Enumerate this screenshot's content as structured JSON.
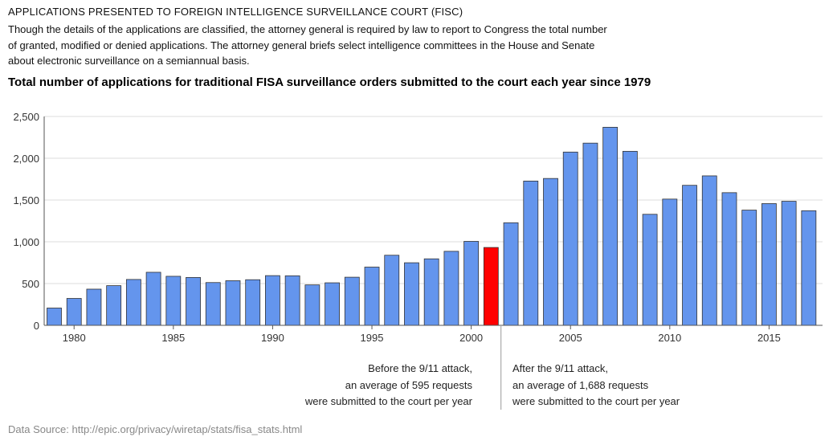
{
  "header": {
    "title": "APPLICATIONS PRESENTED TO FOREIGN INTELLIGENCE SURVEILLANCE COURT (FISC)",
    "description_lines": [
      "Though the details of the applications are classified, the attorney general is required by law to report to Congress the total number",
      "of granted, modified or denied applications. The attorney general briefs select intelligence committees in the House and Senate",
      "about electronic surveillance on a semiannual basis."
    ]
  },
  "chart_data": {
    "type": "bar",
    "title": "Total number of applications for traditional FISA surveillance orders submitted to the court each year since 1979",
    "xlabel": "",
    "ylabel": "",
    "x": [
      1979,
      1980,
      1981,
      1982,
      1983,
      1984,
      1985,
      1986,
      1987,
      1988,
      1989,
      1990,
      1991,
      1992,
      1993,
      1994,
      1995,
      1996,
      1997,
      1998,
      1999,
      2000,
      2001,
      2002,
      2003,
      2004,
      2005,
      2006,
      2007,
      2008,
      2009,
      2010,
      2011,
      2012,
      2013,
      2014,
      2015,
      2016,
      2017
    ],
    "values": [
      207,
      322,
      433,
      475,
      549,
      635,
      587,
      573,
      512,
      534,
      546,
      595,
      593,
      484,
      509,
      576,
      697,
      839,
      749,
      796,
      886,
      1005,
      932,
      1228,
      1727,
      1758,
      2074,
      2181,
      2371,
      2083,
      1329,
      1511,
      1676,
      1789,
      1588,
      1379,
      1457,
      1485,
      1372
    ],
    "highlight": 2001,
    "colors": {
      "bar": "#6495ED",
      "highlight": "#FF0000",
      "bar_outline": "#333333",
      "grid": "#dddddd"
    },
    "ylim": [
      0,
      2500
    ],
    "yticks": [
      0,
      500,
      1000,
      1500,
      2000,
      2500
    ],
    "ytick_labels": [
      "0",
      "500",
      "1,000",
      "1,500",
      "2,000",
      "2,500"
    ],
    "xticks": [
      1980,
      1985,
      1990,
      1995,
      2000,
      2005,
      2010,
      2015
    ],
    "xtick_labels": [
      "1980",
      "1985",
      "1990",
      "1995",
      "2000",
      "2005",
      "2010",
      "2015"
    ],
    "grid": true,
    "annotations": {
      "before": [
        "Before the 9/11 attack,",
        "an average of 595 requests",
        "were submitted to the court per year"
      ],
      "after": [
        "After the 9/11 attack,",
        "an average of 1,688 requests",
        "were submitted to the court per year"
      ]
    }
  },
  "footer": {
    "source": "Data Source: http://epic.org/privacy/wiretap/stats/fisa_stats.html"
  }
}
